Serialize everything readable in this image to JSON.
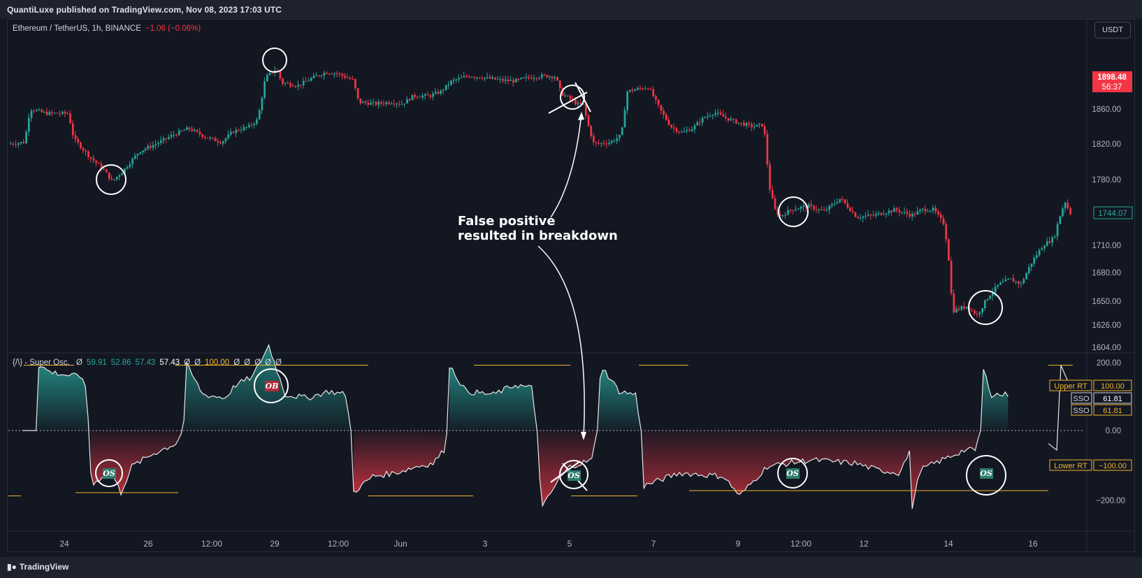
{
  "header": {
    "published": "QuantiLuxe published on TradingView.com, Nov 08, 2023 17:03 UTC"
  },
  "footer": {
    "logo": "TradingView"
  },
  "symbol": {
    "name": "Ethereum / TetherUS, 1h, BINANCE",
    "change": "−1.06 (−0.06%)"
  },
  "currency_button": "USDT",
  "indicator": {
    "name": "{/\\} - Super Osc.",
    "values": [
      {
        "text": "Ø",
        "color": "#d1d4dc"
      },
      {
        "text": "59.91",
        "color": "#26a69a"
      },
      {
        "text": "52.86",
        "color": "#26a69a"
      },
      {
        "text": "57.43",
        "color": "#26a69a"
      },
      {
        "text": "57.43",
        "color": "#ffffff"
      },
      {
        "text": "Ø",
        "color": "#d1d4dc"
      },
      {
        "text": "Ø",
        "color": "#d1d4dc"
      },
      {
        "text": "100.00",
        "color": "#f0b429"
      },
      {
        "text": "Ø",
        "color": "#d1d4dc"
      },
      {
        "text": "Ø",
        "color": "#d1d4dc"
      },
      {
        "text": "Ø",
        "color": "#d1d4dc"
      },
      {
        "text": "Ø",
        "color": "#d1d4dc"
      },
      {
        "text": "Ø",
        "color": "#d1d4dc"
      }
    ]
  },
  "annotation": {
    "line1": "False positive",
    "line2": "resulted in breakdown"
  },
  "chart_data": [
    {
      "type": "candlestick",
      "title": "Ethereum / TetherUS, 1h, BINANCE",
      "y_ticks": [
        "1860.00",
        "1820.00",
        "1780.00",
        "1710.00",
        "1680.00",
        "1650.00",
        "1626.00",
        "1604.00"
      ],
      "last_price": {
        "value": "1898.48",
        "countdown": "56:37",
        "color": "#f23645"
      },
      "current_marker": {
        "value": "1744.07",
        "color": "#26a69a"
      },
      "path": [
        [
          0,
          1820
        ],
        [
          0.015,
          1822
        ],
        [
          0.02,
          1860
        ],
        [
          0.035,
          1855
        ],
        [
          0.055,
          1855
        ],
        [
          0.06,
          1826
        ],
        [
          0.075,
          1805
        ],
        [
          0.088,
          1790
        ],
        [
          0.095,
          1778
        ],
        [
          0.105,
          1790
        ],
        [
          0.12,
          1812
        ],
        [
          0.135,
          1820
        ],
        [
          0.15,
          1830
        ],
        [
          0.165,
          1838
        ],
        [
          0.18,
          1828
        ],
        [
          0.195,
          1822
        ],
        [
          0.205,
          1834
        ],
        [
          0.22,
          1840
        ],
        [
          0.228,
          1848
        ],
        [
          0.235,
          1896
        ],
        [
          0.245,
          1906
        ],
        [
          0.25,
          1890
        ],
        [
          0.265,
          1887
        ],
        [
          0.28,
          1897
        ],
        [
          0.29,
          1902
        ],
        [
          0.3,
          1901
        ],
        [
          0.315,
          1893
        ],
        [
          0.32,
          1868
        ],
        [
          0.335,
          1866
        ],
        [
          0.35,
          1868
        ],
        [
          0.36,
          1866
        ],
        [
          0.37,
          1875
        ],
        [
          0.385,
          1875
        ],
        [
          0.395,
          1880
        ],
        [
          0.405,
          1892
        ],
        [
          0.42,
          1898
        ],
        [
          0.435,
          1896
        ],
        [
          0.45,
          1893
        ],
        [
          0.462,
          1892
        ],
        [
          0.475,
          1896
        ],
        [
          0.49,
          1898
        ],
        [
          0.5,
          1897
        ],
        [
          0.505,
          1878
        ],
        [
          0.515,
          1870
        ],
        [
          0.52,
          1865
        ],
        [
          0.525,
          1866
        ],
        [
          0.53,
          1840
        ],
        [
          0.535,
          1820
        ],
        [
          0.55,
          1822
        ],
        [
          0.56,
          1830
        ],
        [
          0.565,
          1880
        ],
        [
          0.575,
          1883
        ],
        [
          0.585,
          1885
        ],
        [
          0.595,
          1860
        ],
        [
          0.605,
          1840
        ],
        [
          0.615,
          1833
        ],
        [
          0.625,
          1838
        ],
        [
          0.635,
          1850
        ],
        [
          0.645,
          1856
        ],
        [
          0.655,
          1850
        ],
        [
          0.665,
          1845
        ],
        [
          0.68,
          1840
        ],
        [
          0.69,
          1842
        ],
        [
          0.695,
          1773
        ],
        [
          0.7,
          1748
        ],
        [
          0.705,
          1741
        ],
        [
          0.715,
          1748
        ],
        [
          0.73,
          1752
        ],
        [
          0.745,
          1746
        ],
        [
          0.76,
          1760
        ],
        [
          0.775,
          1740
        ],
        [
          0.79,
          1742
        ],
        [
          0.81,
          1748
        ],
        [
          0.825,
          1742
        ],
        [
          0.835,
          1748
        ],
        [
          0.845,
          1748
        ],
        [
          0.855,
          1732
        ],
        [
          0.86,
          1683
        ],
        [
          0.862,
          1640
        ],
        [
          0.875,
          1645
        ],
        [
          0.885,
          1636
        ],
        [
          0.895,
          1655
        ],
        [
          0.905,
          1668
        ],
        [
          0.915,
          1673
        ],
        [
          0.925,
          1668
        ],
        [
          0.935,
          1692
        ],
        [
          0.945,
          1710
        ],
        [
          0.955,
          1718
        ],
        [
          0.96,
          1740
        ],
        [
          0.965,
          1757
        ],
        [
          0.97,
          1744
        ]
      ]
    },
    {
      "type": "area",
      "title": "{/\\} - Super Osc.",
      "y_ticks": [
        "200.00",
        "0.00",
        "−200.00"
      ],
      "ylim": [
        -200,
        200
      ],
      "upper_band": {
        "label": "Upper RT",
        "value": "100.00",
        "color": "#f0b429"
      },
      "lower_band": {
        "label": "Lower RT",
        "value": "−100.00",
        "color": "#f0b429"
      },
      "series_labels": [
        {
          "label": "SSO",
          "value": "61.81"
        },
        {
          "label": "SSO",
          "value": "61.81"
        }
      ],
      "signals": [
        "OS",
        "OB",
        "OS",
        "OS",
        "OS"
      ],
      "path": [
        [
          0,
          0
        ],
        [
          0.013,
          0
        ],
        [
          0.015,
          100
        ],
        [
          0.025,
          90
        ],
        [
          0.04,
          85
        ],
        [
          0.055,
          82
        ],
        [
          0.058,
          60
        ],
        [
          0.061,
          0
        ],
        [
          0.063,
          -85
        ],
        [
          0.08,
          -60
        ],
        [
          0.09,
          -95
        ],
        [
          0.1,
          -55
        ],
        [
          0.12,
          -35
        ],
        [
          0.14,
          -20
        ],
        [
          0.147,
          0
        ],
        [
          0.15,
          100
        ],
        [
          0.165,
          55
        ],
        [
          0.185,
          50
        ],
        [
          0.195,
          70
        ],
        [
          0.21,
          82
        ],
        [
          0.225,
          130
        ],
        [
          0.24,
          55
        ],
        [
          0.26,
          50
        ],
        [
          0.28,
          60
        ],
        [
          0.295,
          55
        ],
        [
          0.3,
          0
        ],
        [
          0.302,
          -95
        ],
        [
          0.32,
          -70
        ],
        [
          0.34,
          -65
        ],
        [
          0.36,
          -55
        ],
        [
          0.375,
          -50
        ],
        [
          0.385,
          -30
        ],
        [
          0.388,
          0
        ],
        [
          0.39,
          100
        ],
        [
          0.405,
          60
        ],
        [
          0.43,
          55
        ],
        [
          0.45,
          70
        ],
        [
          0.465,
          65
        ],
        [
          0.47,
          0
        ],
        [
          0.472,
          -55
        ],
        [
          0.474,
          -120
        ],
        [
          0.49,
          -75
        ],
        [
          0.5,
          -55
        ],
        [
          0.52,
          -45
        ],
        [
          0.525,
          0
        ],
        [
          0.528,
          100
        ],
        [
          0.545,
          60
        ],
        [
          0.56,
          55
        ],
        [
          0.565,
          0
        ],
        [
          0.567,
          -85
        ],
        [
          0.6,
          -65
        ],
        [
          0.64,
          -70
        ],
        [
          0.655,
          -100
        ],
        [
          0.68,
          -55
        ],
        [
          0.7,
          -50
        ],
        [
          0.72,
          -45
        ],
        [
          0.76,
          -50
        ],
        [
          0.78,
          -60
        ],
        [
          0.8,
          -65
        ],
        [
          0.81,
          -35
        ],
        [
          0.812,
          -120
        ],
        [
          0.82,
          -60
        ],
        [
          0.84,
          -45
        ],
        [
          0.86,
          -30
        ],
        [
          0.87,
          -30
        ],
        [
          0.875,
          0
        ],
        [
          0.876,
          100
        ],
        [
          0.885,
          55
        ],
        [
          0.9,
          55
        ]
      ]
    }
  ],
  "x_axis": {
    "ticks": [
      "24",
      "26",
      "12:00",
      "29",
      "12:00",
      "Jun",
      "3",
      "5",
      "7",
      "9",
      "12:00",
      "12",
      "14",
      "16"
    ]
  }
}
